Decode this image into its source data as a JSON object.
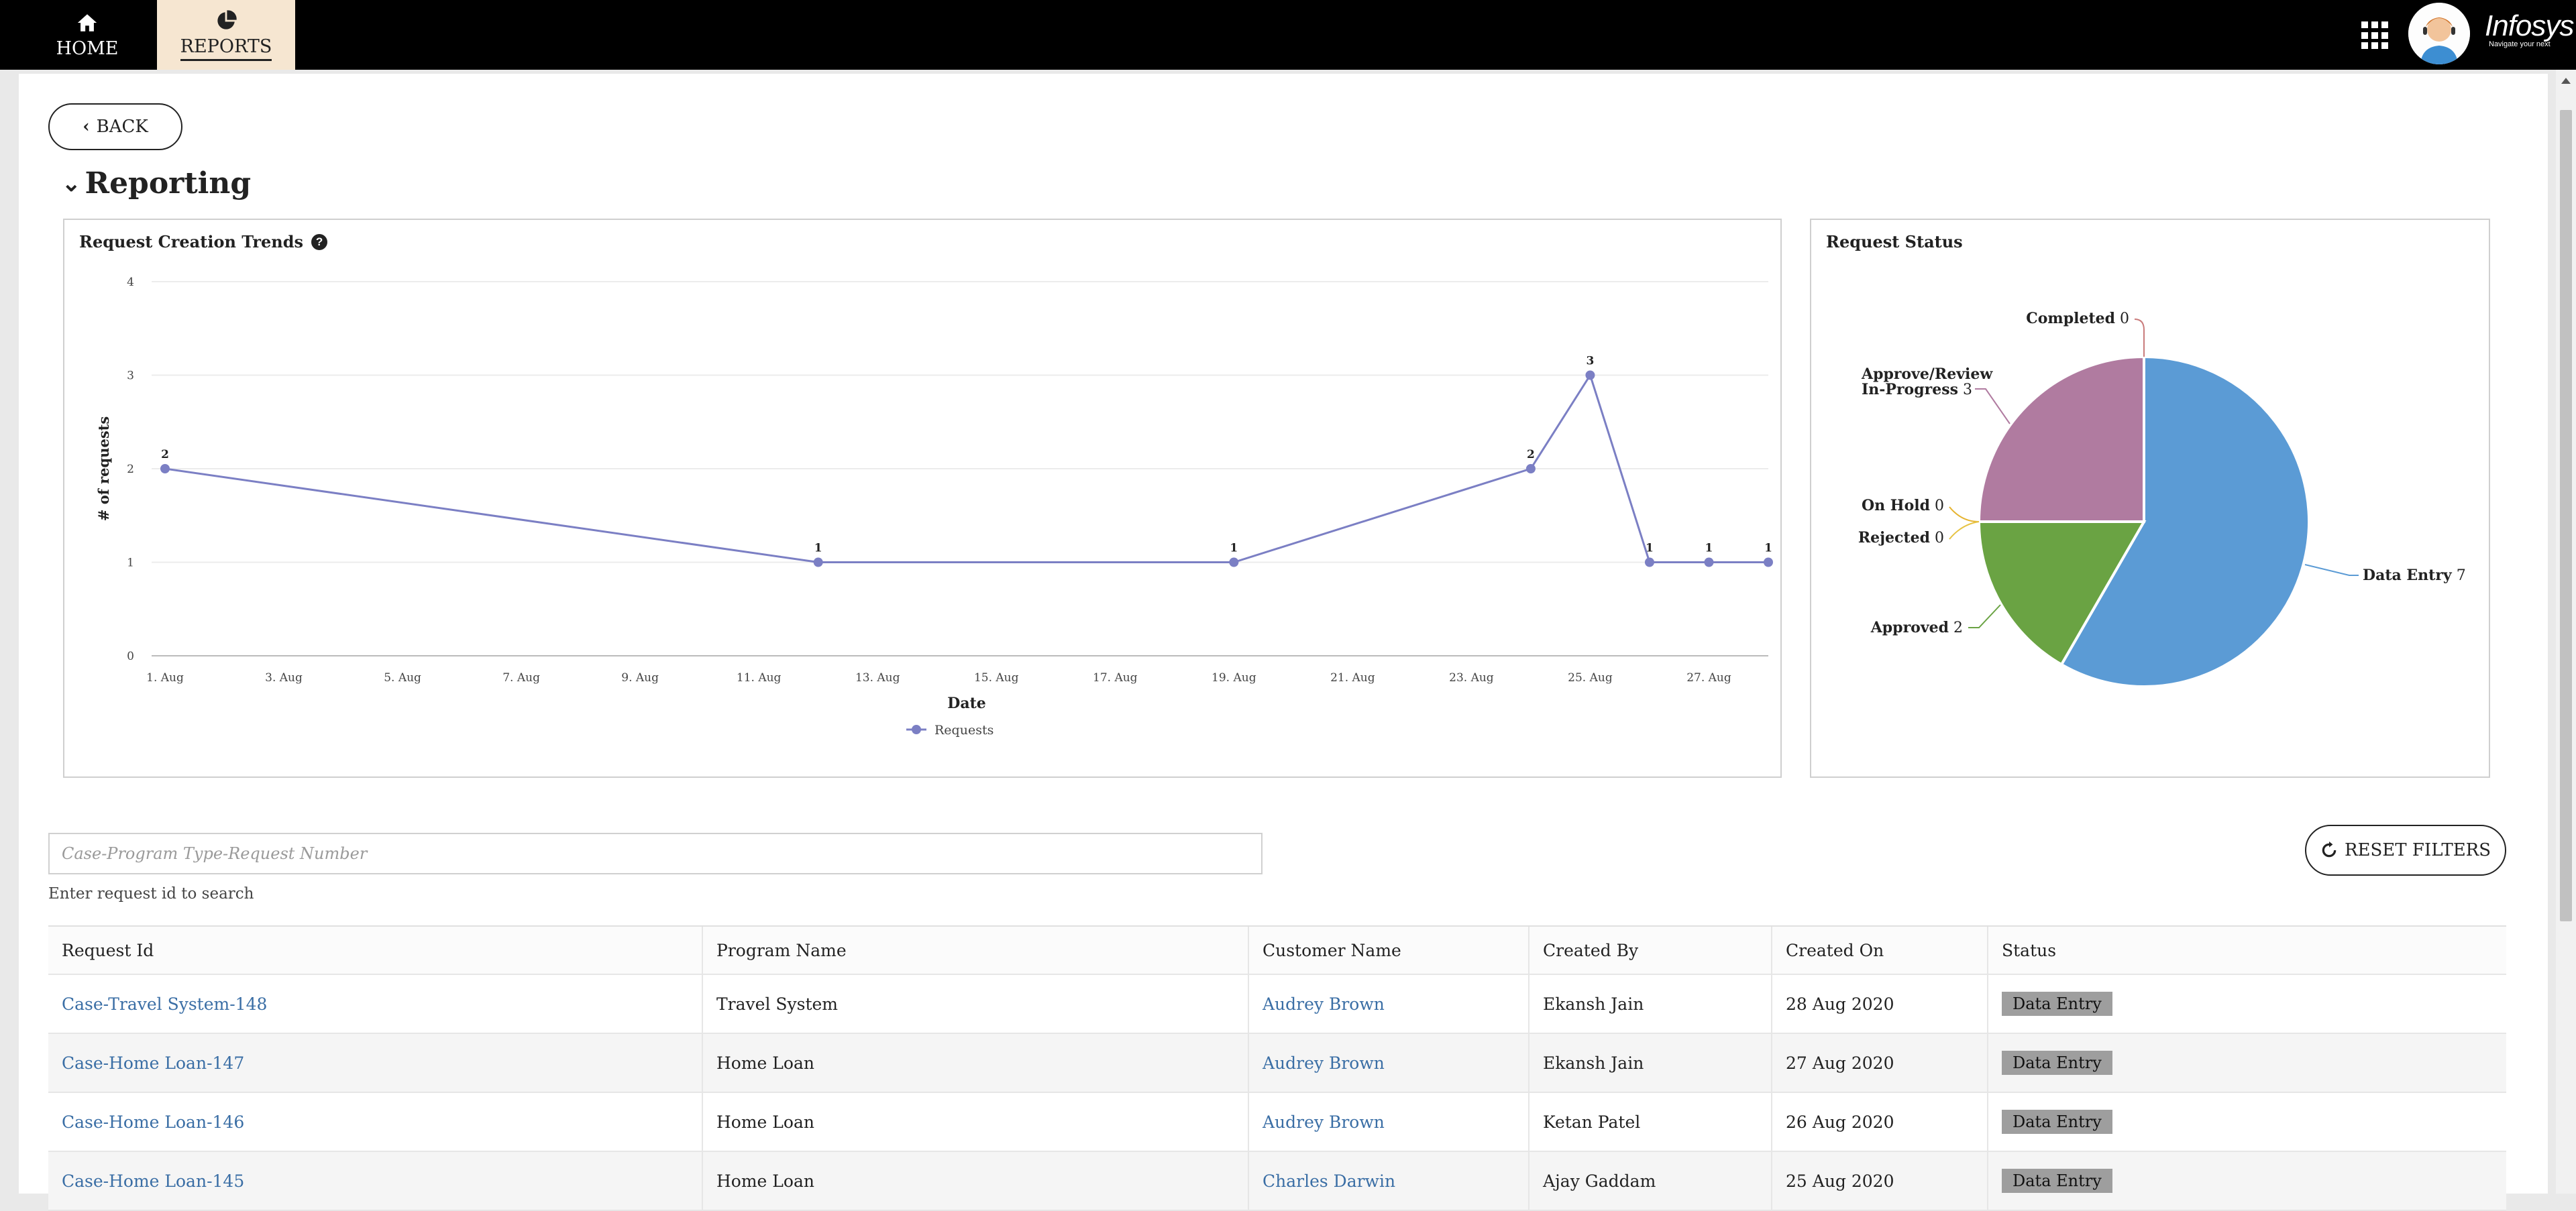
{
  "nav": {
    "home_label": "HOME",
    "reports_label": "REPORTS",
    "brand": "Infosys",
    "brand_tagline": "Navigate your next"
  },
  "page": {
    "back_label": "BACK",
    "section_title": "Reporting"
  },
  "trend_card": {
    "title": "Request Creation Trends"
  },
  "status_card": {
    "title": "Request Status"
  },
  "chart_data": [
    {
      "type": "line",
      "title": "Request Creation Trends",
      "xlabel": "Date",
      "ylabel": "# of requests",
      "x_ticks": [
        "1. Aug",
        "3. Aug",
        "5. Aug",
        "7. Aug",
        "9. Aug",
        "11. Aug",
        "13. Aug",
        "15. Aug",
        "17. Aug",
        "19. Aug",
        "21. Aug",
        "23. Aug",
        "25. Aug",
        "27. Aug"
      ],
      "y_ticks": [
        "0",
        "1",
        "2",
        "3",
        "4"
      ],
      "ylim": [
        0,
        4
      ],
      "xlim": [
        "2020-08-01",
        "2020-08-28"
      ],
      "grid": true,
      "legend": "bottom-center",
      "color": "#7b7fc4",
      "series": [
        {
          "name": "Requests",
          "x": [
            "2020-08-01",
            "2020-08-12",
            "2020-08-19",
            "2020-08-24",
            "2020-08-25",
            "2020-08-26",
            "2020-08-27",
            "2020-08-28"
          ],
          "values": [
            2,
            1,
            1,
            2,
            3,
            1,
            1,
            1
          ]
        }
      ]
    },
    {
      "type": "pie",
      "title": "Request Status",
      "slices": [
        {
          "label": "Data Entry",
          "value": 7,
          "color": "#5b9bd5"
        },
        {
          "label": "Approved",
          "value": 2,
          "color": "#6aa343"
        },
        {
          "label": "Rejected",
          "value": 0,
          "color": "#e6c343"
        },
        {
          "label": "On Hold",
          "value": 0,
          "color": "#e6b431"
        },
        {
          "label": "Approve/Review In-Progress",
          "value": 3,
          "color": "#b07ba0"
        },
        {
          "label": "Completed",
          "value": 0,
          "color": "#c97b7b"
        }
      ]
    }
  ],
  "pie_labels": {
    "completed": "Completed",
    "completed_val": "0",
    "approve_line1": "Approve/Review",
    "approve_line2": "In-Progress",
    "approve_val": "3",
    "onhold": "On Hold",
    "onhold_val": "0",
    "rejected": "Rejected",
    "rejected_val": "0",
    "approved": "Approved",
    "approved_val": "2",
    "dataentry": "Data Entry",
    "dataentry_val": "7"
  },
  "search": {
    "placeholder": "Case-Program Type-Request Number",
    "value": "",
    "help": "Enter request id to search",
    "reset_label": "RESET FILTERS"
  },
  "table": {
    "headers": [
      "Request Id",
      "Program Name",
      "Customer Name",
      "Created By",
      "Created On",
      "Status"
    ],
    "rows": [
      [
        "Case-Travel System-148",
        "Travel System",
        "Audrey Brown",
        "Ekansh Jain",
        "28 Aug 2020",
        "Data Entry"
      ],
      [
        "Case-Home Loan-147",
        "Home Loan",
        "Audrey Brown",
        "Ekansh Jain",
        "27 Aug 2020",
        "Data Entry"
      ],
      [
        "Case-Home Loan-146",
        "Home Loan",
        "Audrey Brown",
        "Ketan Patel",
        "26 Aug 2020",
        "Data Entry"
      ],
      [
        "Case-Home Loan-145",
        "Home Loan",
        "Charles Darwin",
        "Ajay Gaddam",
        "25 Aug 2020",
        "Data Entry"
      ]
    ]
  }
}
